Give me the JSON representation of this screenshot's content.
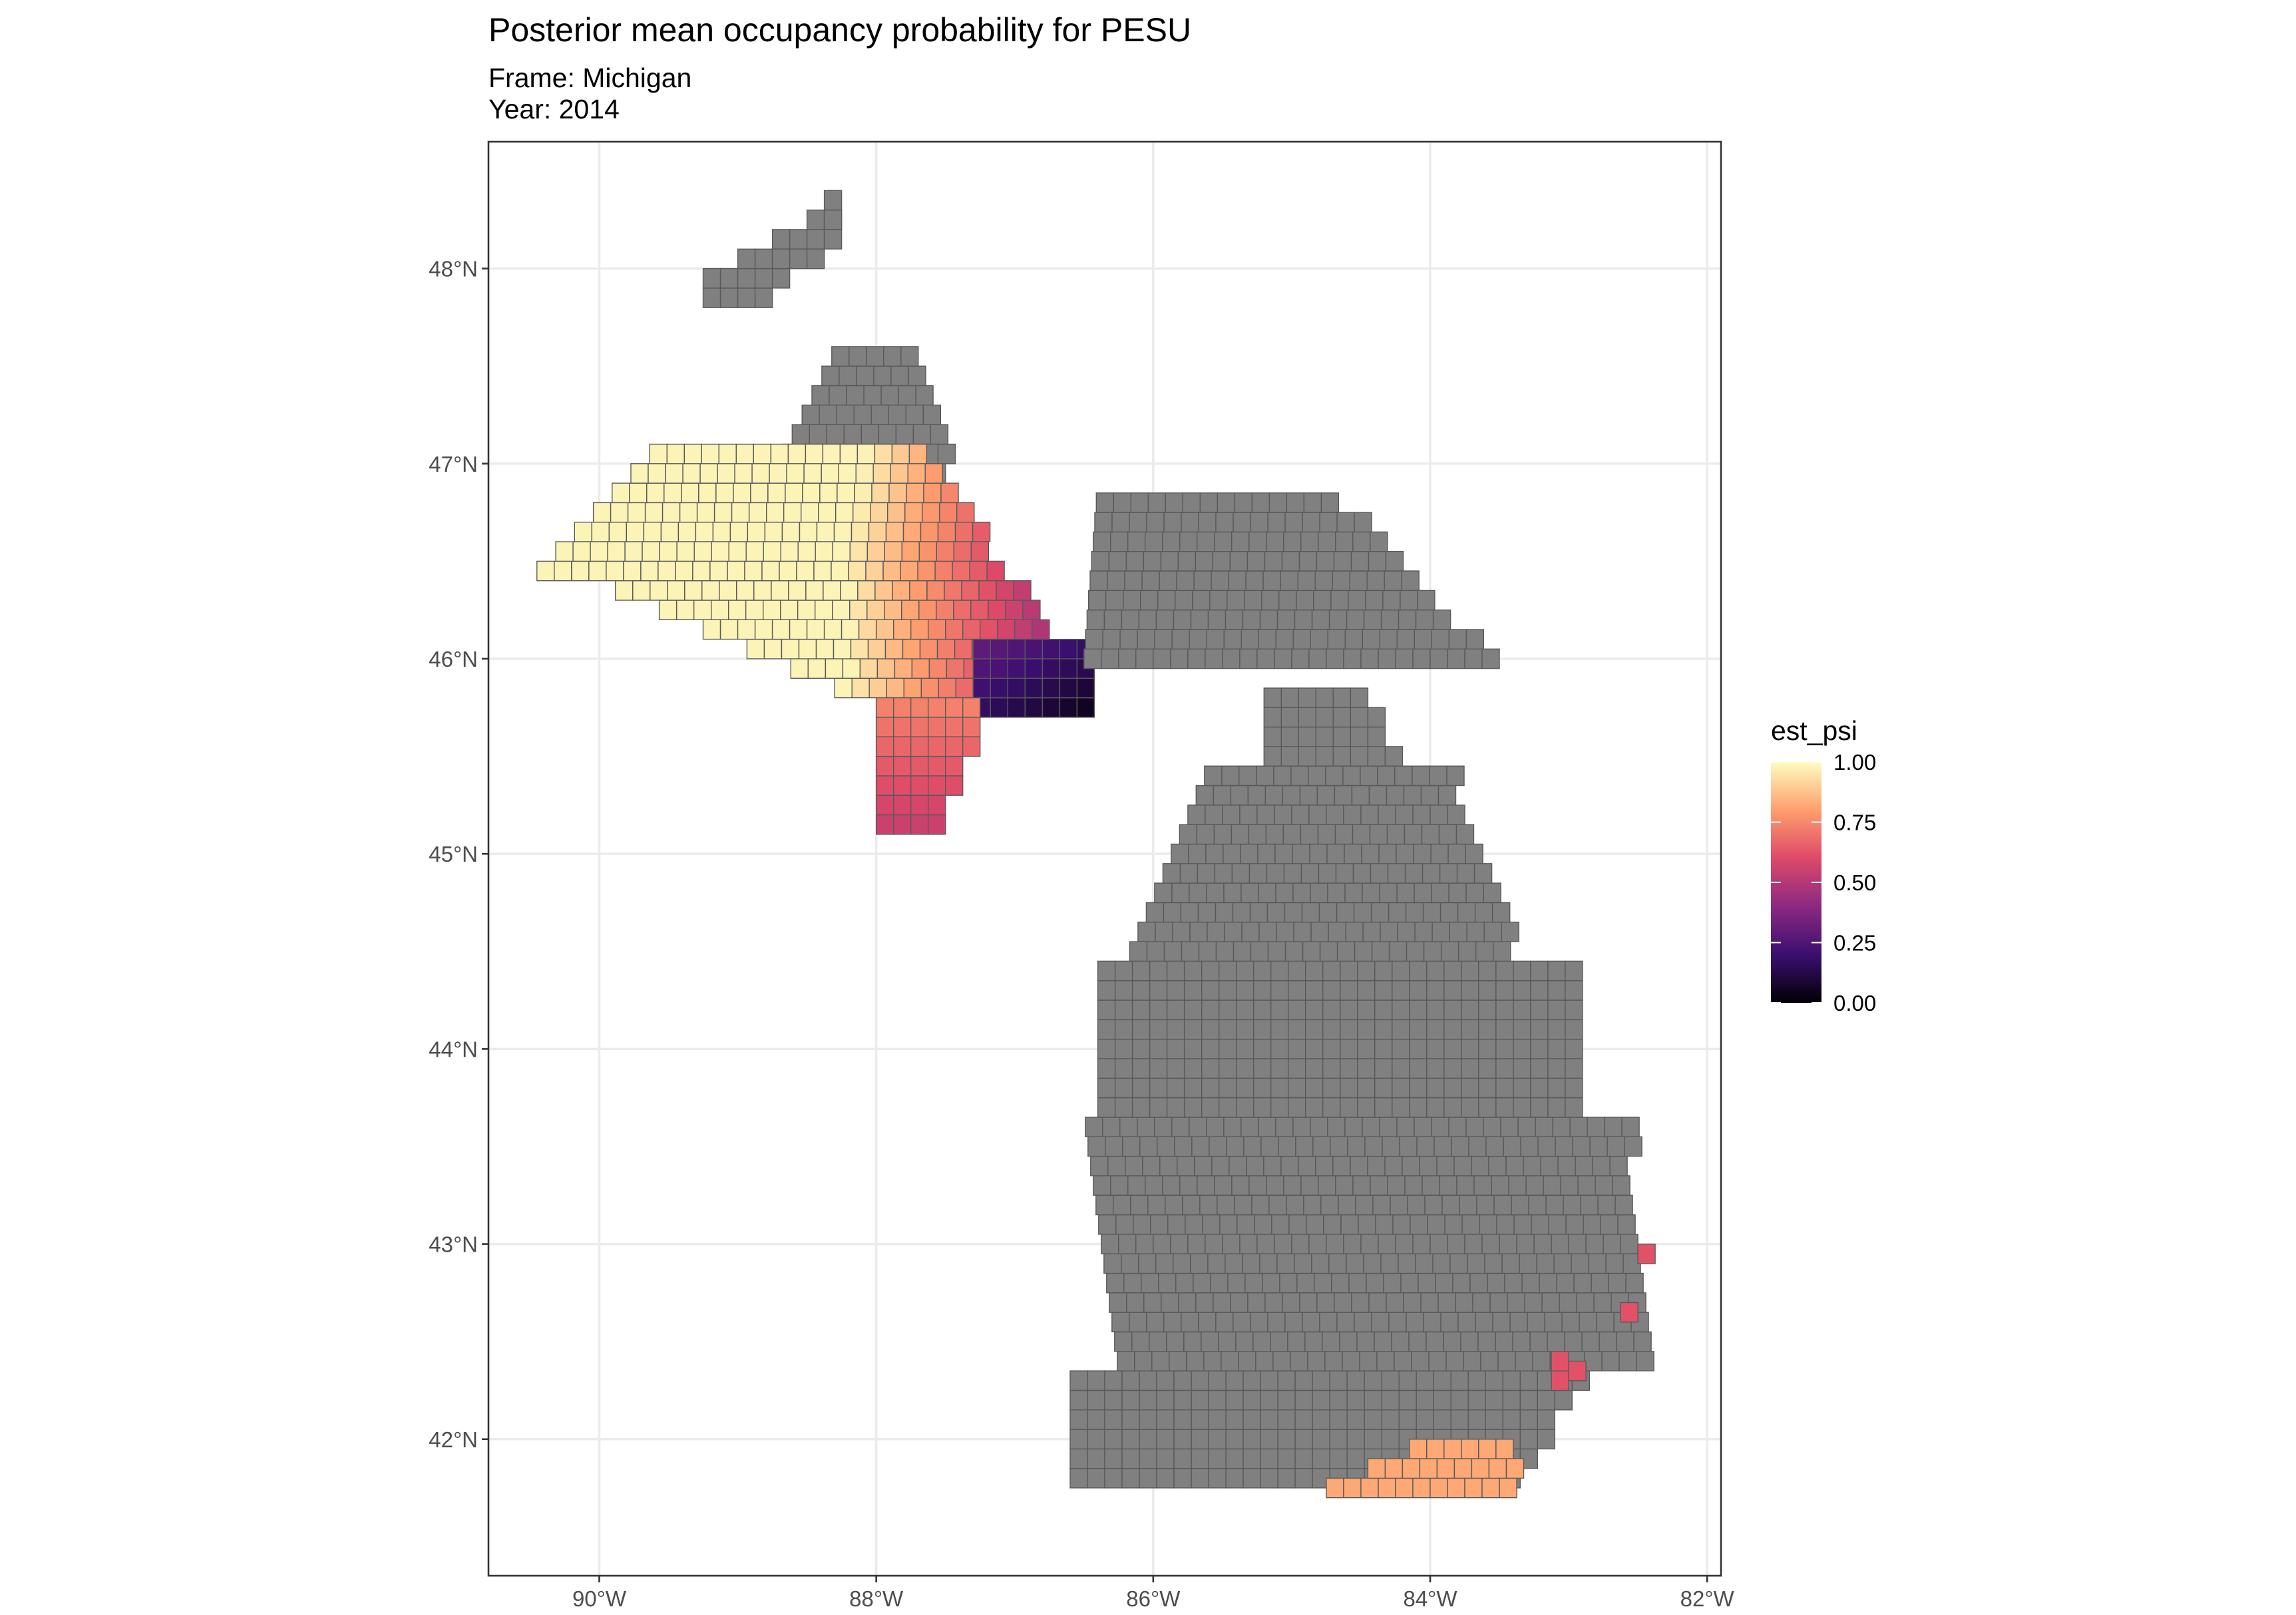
{
  "plot": {
    "title": "Posterior mean occupancy probability for PESU",
    "subtitle_frame": "Frame: Michigan",
    "subtitle_year": "Year: 2014"
  },
  "legend": {
    "title": "est_psi",
    "ticks": [
      {
        "value": 1.0,
        "label": "1.00"
      },
      {
        "value": 0.75,
        "label": "0.75"
      },
      {
        "value": 0.5,
        "label": "0.50"
      },
      {
        "value": 0.25,
        "label": "0.25"
      },
      {
        "value": 0.0,
        "label": "0.00"
      }
    ],
    "colors": [
      "#000004",
      "#3b0f70",
      "#8c2981",
      "#de4968",
      "#fe9f6d",
      "#fcfdbf"
    ]
  },
  "chart_data": {
    "type": "heatmap",
    "title": "Posterior mean occupancy probability for PESU",
    "subtitle": "Frame: Michigan\nYear: 2014",
    "fill_variable": "est_psi",
    "fill_range": [
      0,
      1
    ],
    "colorscale": "magma",
    "na_color": "#808080",
    "xlim": [
      -90.8,
      -81.9
    ],
    "ylim": [
      41.3,
      48.65
    ],
    "x_ticks": [
      {
        "value": -90,
        "label": "90°W"
      },
      {
        "value": -88,
        "label": "88°W"
      },
      {
        "value": -86,
        "label": "86°W"
      },
      {
        "value": -84,
        "label": "84°W"
      },
      {
        "value": -82,
        "label": "82°W"
      }
    ],
    "y_ticks": [
      {
        "value": 42,
        "label": "42°N"
      },
      {
        "value": 43,
        "label": "43°N"
      },
      {
        "value": 44,
        "label": "44°N"
      },
      {
        "value": 45,
        "label": "45°N"
      },
      {
        "value": 46,
        "label": "46°N"
      },
      {
        "value": 47,
        "label": "47°N"
      },
      {
        "value": 48,
        "label": "48°N"
      }
    ],
    "grid": true,
    "legend_position": "right",
    "cell_size_deg": {
      "lon": 0.125,
      "lat": 0.1
    },
    "gray_regions": [
      {
        "name": "isle-royale",
        "lon_range": [
          -89.3,
          -88.3
        ],
        "lat_range": [
          47.8,
          48.3
        ]
      },
      {
        "name": "keweenaw-peninsula",
        "lon_range": [
          -88.9,
          -87.5
        ],
        "lat_range": [
          46.85,
          47.6
        ]
      },
      {
        "name": "eastern-upper-peninsula",
        "lon_range": [
          -87.0,
          -84.6
        ],
        "lat_range": [
          45.95,
          46.85
        ]
      },
      {
        "name": "lower-peninsula",
        "lon_range": [
          -86.6,
          -82.3
        ],
        "lat_range": [
          41.65,
          45.85
        ]
      }
    ],
    "colored_regions": [
      {
        "name": "western-upper-peninsula",
        "lon_range": [
          -90.45,
          -87.0
        ],
        "lat_range": [
          45.8,
          47.1
        ],
        "est_psi_range": [
          0.6,
          1.0
        ]
      },
      {
        "name": "green-bay-shore",
        "lon_range": [
          -87.35,
          -86.5
        ],
        "lat_range": [
          45.7,
          46.1
        ],
        "est_psi_range": [
          0.0,
          0.35
        ]
      },
      {
        "name": "menominee-area",
        "lon_range": [
          -88.0,
          -87.3
        ],
        "lat_range": [
          45.05,
          45.8
        ],
        "est_psi_range": [
          0.5,
          0.8
        ]
      },
      {
        "name": "southern-michigan-border",
        "lon_range": [
          -84.7,
          -83.3
        ],
        "lat_range": [
          41.7,
          41.9
        ],
        "est_psi_range": [
          0.75,
          0.95
        ]
      },
      {
        "name": "detroit-river-area",
        "lon_range": [
          -83.2,
          -82.5
        ],
        "lat_range": [
          42.2,
          42.95
        ],
        "est_psi_range": [
          0.6,
          0.7
        ]
      }
    ]
  }
}
